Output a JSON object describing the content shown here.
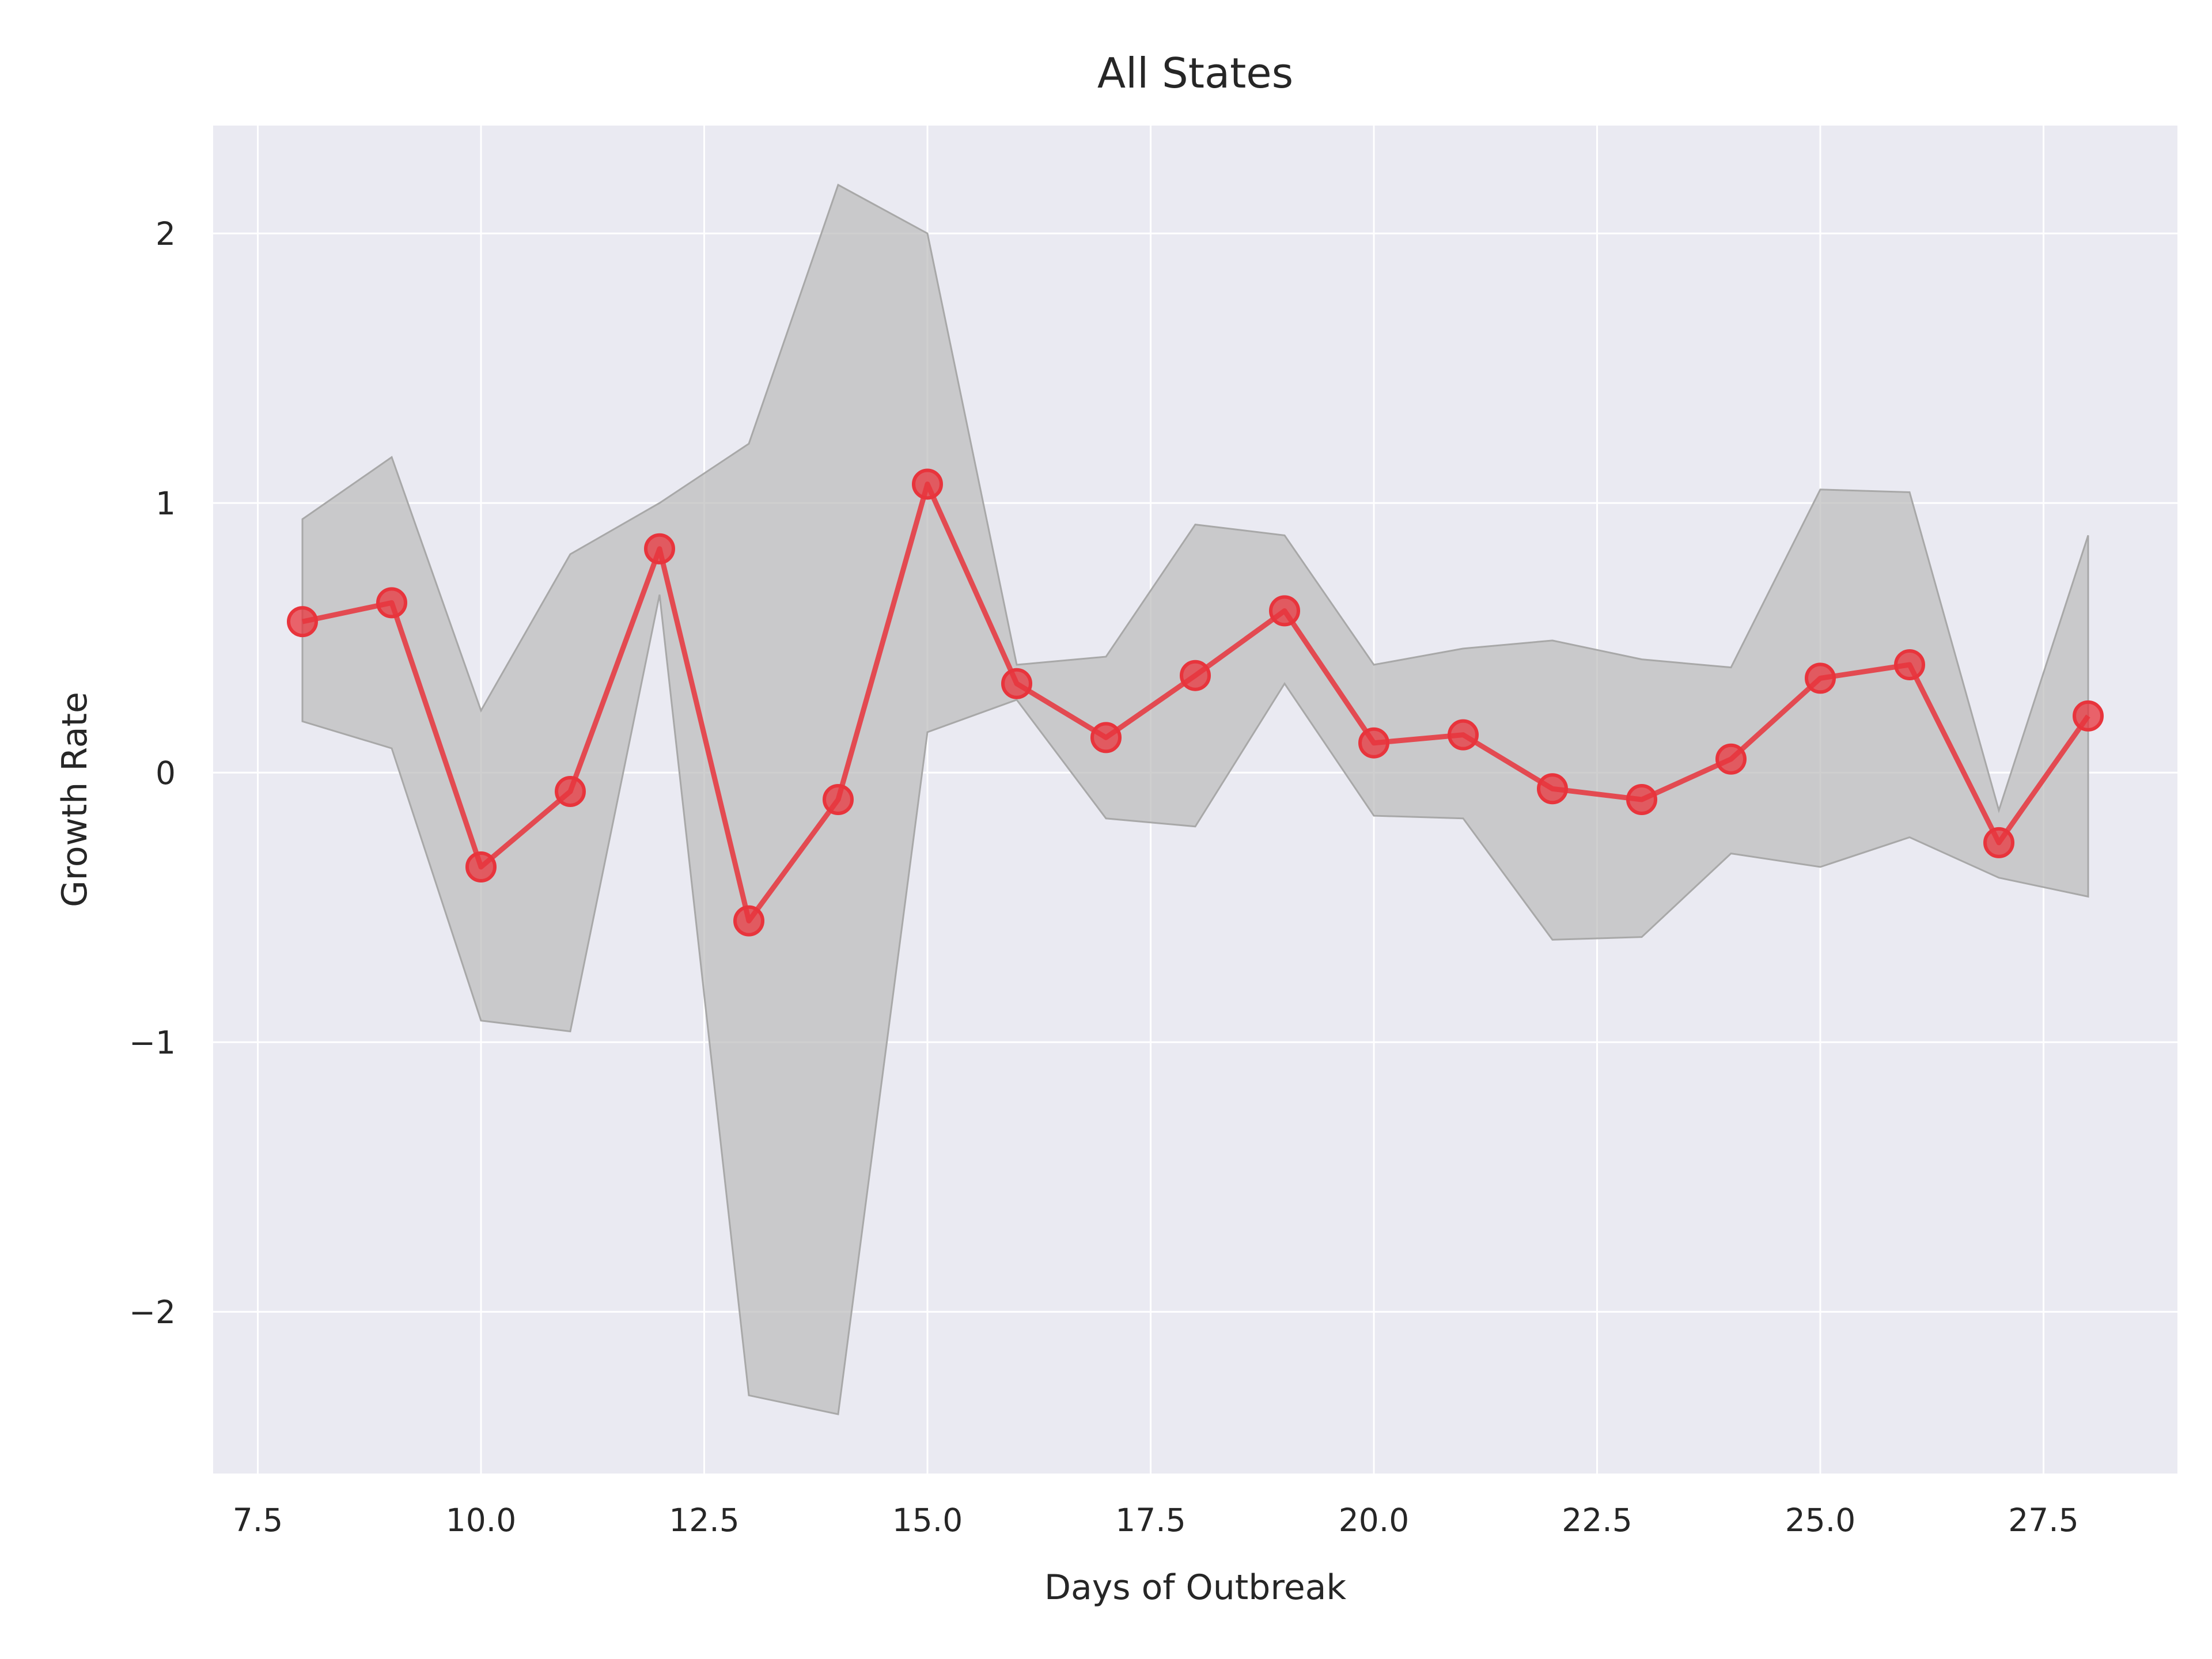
{
  "chart_data": {
    "type": "line",
    "title": "All States",
    "xlabel": "Days of Outbreak",
    "ylabel": "Growth Rate",
    "xlim": [
      7.0,
      29.0
    ],
    "ylim": [
      -2.6,
      2.4
    ],
    "x_ticks": [
      7.5,
      10.0,
      12.5,
      15.0,
      17.5,
      20.0,
      22.5,
      25.0,
      27.5
    ],
    "x_tick_labels": [
      "7.5",
      "10.0",
      "12.5",
      "15.0",
      "17.5",
      "20.0",
      "22.5",
      "25.0",
      "27.5"
    ],
    "y_ticks": [
      -2,
      -1,
      0,
      1,
      2
    ],
    "y_tick_labels": [
      "−2",
      "−1",
      "0",
      "1",
      "2"
    ],
    "grid": true,
    "colors": {
      "background": "#eaeaf2",
      "grid": "#ffffff",
      "line": "#e8343c",
      "band_fill": "#bbbbbb",
      "band_edge": "#a8a8a8"
    },
    "series": [
      {
        "x": [
          8,
          9,
          10,
          11,
          12,
          13,
          14,
          15,
          16,
          17,
          18,
          19,
          20,
          21,
          22,
          23,
          24,
          25,
          26,
          27,
          28
        ],
        "values": [
          0.56,
          0.63,
          -0.35,
          -0.07,
          0.83,
          -0.55,
          -0.1,
          1.07,
          0.33,
          0.13,
          0.36,
          0.6,
          0.11,
          0.14,
          -0.06,
          -0.1,
          0.05,
          0.35,
          0.4,
          -0.26,
          0.21
        ],
        "lower": [
          0.19,
          0.09,
          -0.92,
          -0.96,
          0.66,
          -2.31,
          -2.38,
          0.15,
          0.27,
          -0.17,
          -0.2,
          0.33,
          -0.16,
          -0.17,
          -0.62,
          -0.61,
          -0.3,
          -0.35,
          -0.24,
          -0.39,
          -0.46
        ],
        "upper": [
          0.94,
          1.17,
          0.23,
          0.81,
          1.0,
          1.22,
          2.18,
          2.0,
          0.4,
          0.43,
          0.92,
          0.88,
          0.4,
          0.46,
          0.49,
          0.42,
          0.39,
          1.05,
          1.04,
          -0.14,
          0.88
        ]
      }
    ]
  }
}
